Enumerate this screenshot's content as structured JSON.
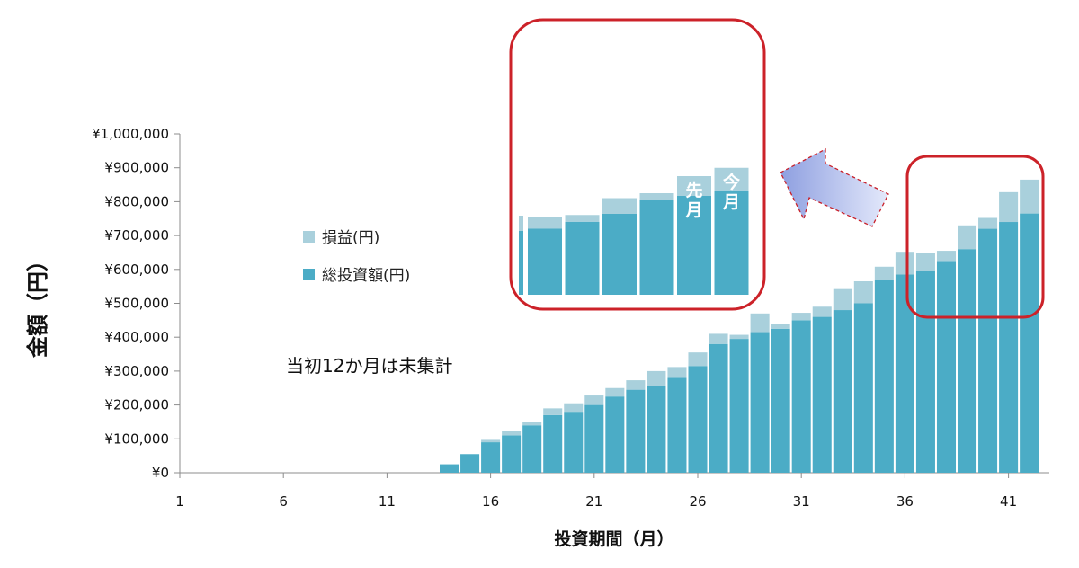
{
  "chart_data": {
    "type": "bar",
    "stacked": true,
    "xlabel": "投資期間（月）",
    "ylabel": "金額（円）",
    "x_tick_labels": [
      "1",
      "6",
      "11",
      "16",
      "21",
      "26",
      "31",
      "36",
      "41"
    ],
    "y_tick_labels": [
      "¥0",
      "¥100,000",
      "¥200,000",
      "¥300,000",
      "¥400,000",
      "¥500,000",
      "¥600,000",
      "¥700,000",
      "¥800,000",
      "¥900,000",
      "¥1,000,000"
    ],
    "ylim": [
      0,
      1000000
    ],
    "xlim": [
      1,
      43
    ],
    "grid": false,
    "legend_position": "left",
    "annotation": "当初12か月は未集計",
    "x": [
      14,
      15,
      16,
      17,
      18,
      19,
      20,
      21,
      22,
      23,
      24,
      25,
      26,
      27,
      28,
      29,
      30,
      31,
      32,
      33,
      34,
      35,
      36,
      37,
      38,
      39,
      40,
      41,
      42
    ],
    "series": [
      {
        "name": "総投資額(円)",
        "color": "#4bacc6",
        "values": [
          25000,
          55000,
          90000,
          110000,
          140000,
          170000,
          180000,
          200000,
          225000,
          245000,
          255000,
          280000,
          315000,
          380000,
          395000,
          415000,
          425000,
          450000,
          460000,
          480000,
          500000,
          570000,
          585000,
          595000,
          625000,
          660000,
          720000,
          740000,
          765000
        ]
      },
      {
        "name": "損益(円)",
        "color": "#a9d0dc",
        "values": [
          0,
          0,
          7000,
          12000,
          10000,
          20000,
          25000,
          28000,
          25000,
          28000,
          45000,
          32000,
          40000,
          30000,
          12000,
          55000,
          15000,
          22000,
          30000,
          62000,
          65000,
          38000,
          67000,
          53000,
          30000,
          70000,
          32000,
          88000,
          100000
        ]
      }
    ]
  },
  "inset": {
    "last_month_label": "先月",
    "this_month_label": "今月",
    "frame_color": "#cc2229"
  }
}
